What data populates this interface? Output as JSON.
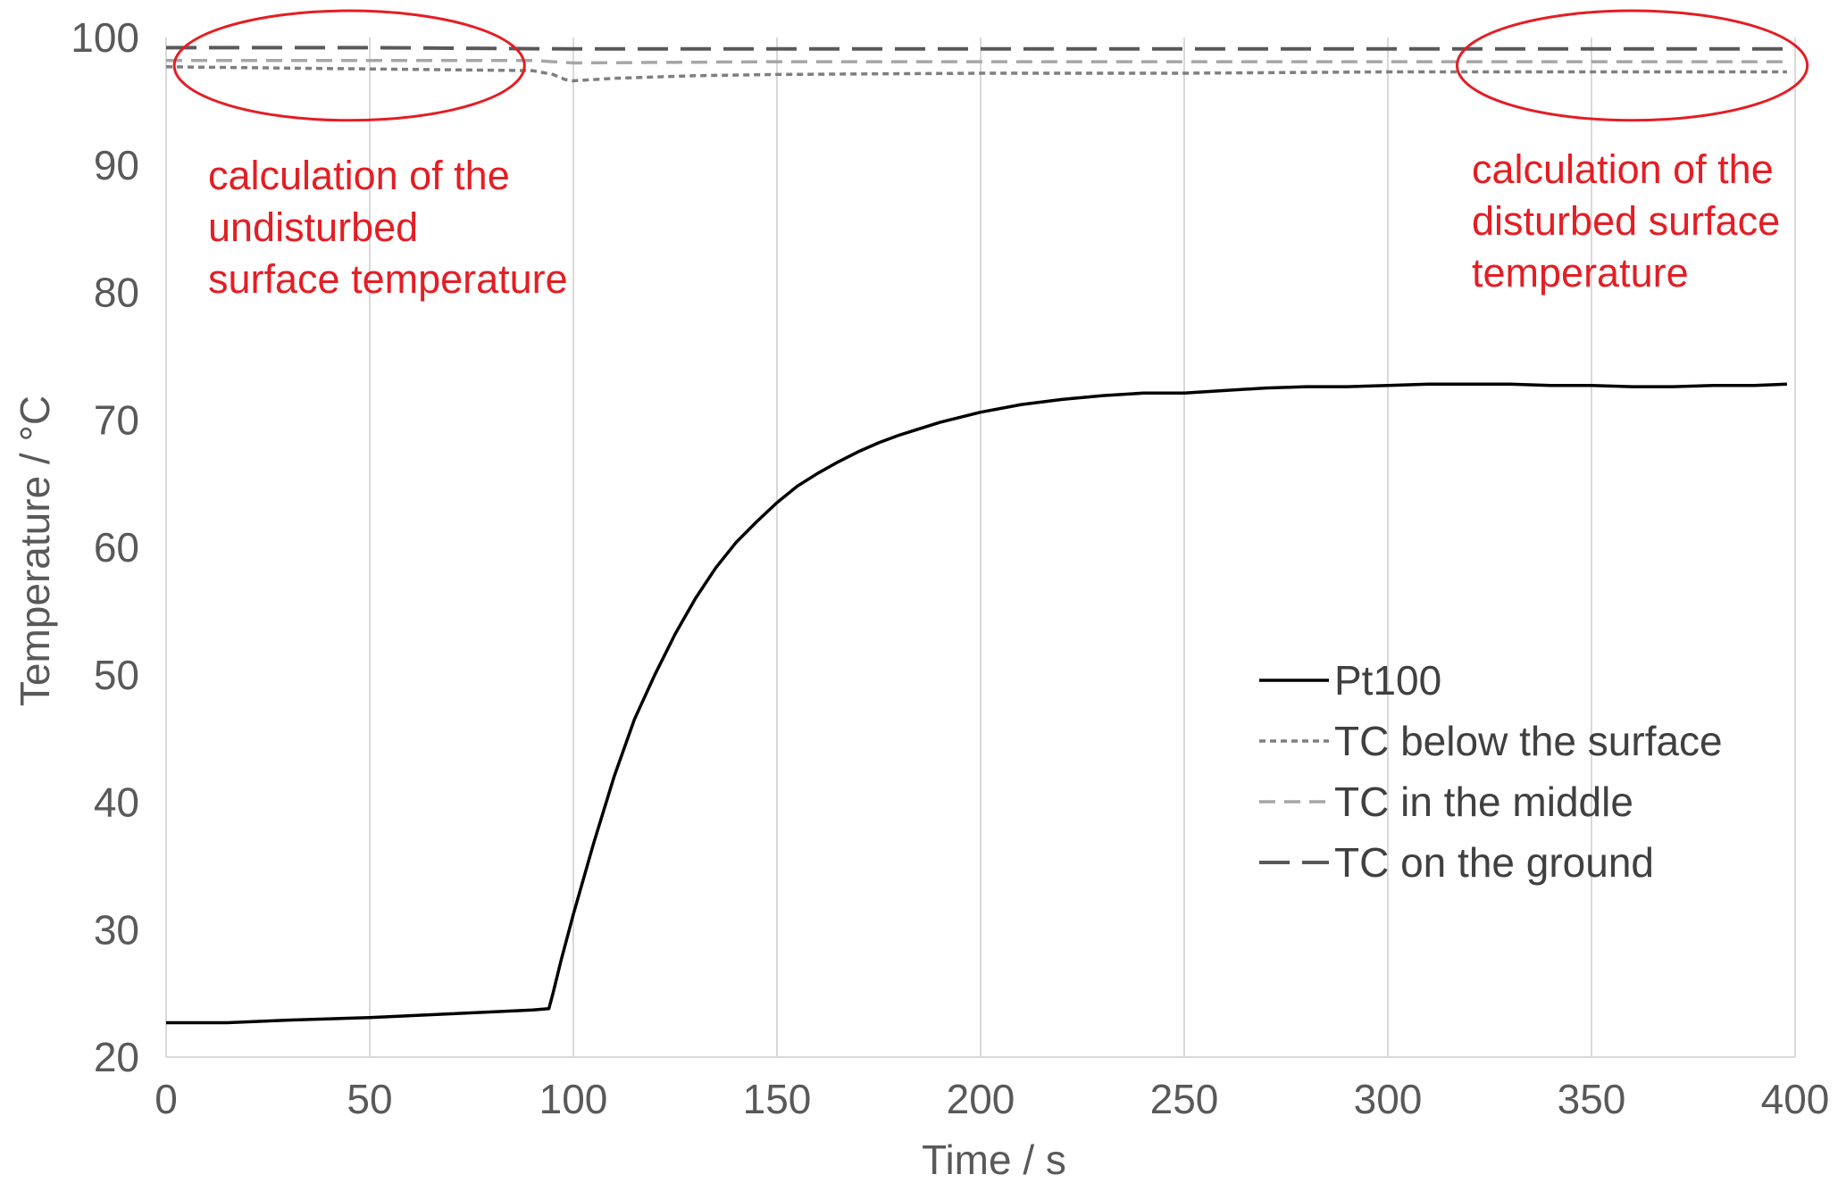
{
  "chart_data": {
    "type": "line",
    "title": "",
    "xlabel": "Time / s",
    "ylabel": "Temperature / °C",
    "xlim": [
      0,
      400
    ],
    "ylim": [
      20,
      100
    ],
    "xticks": [
      "0",
      "50",
      "100",
      "150",
      "200",
      "250",
      "300",
      "350",
      "400"
    ],
    "yticks": [
      "20",
      "30",
      "40",
      "50",
      "60",
      "70",
      "80",
      "90",
      "100"
    ],
    "grid": "vertical",
    "legend_position": "bottom-right",
    "series": [
      {
        "name": "Pt100",
        "color": "#000000",
        "style": "solid",
        "x": [
          0,
          15,
          30,
          50,
          70,
          90,
          94,
          95,
          97,
          100,
          105,
          110,
          115,
          120,
          125,
          130,
          135,
          140,
          145,
          150,
          155,
          160,
          165,
          170,
          175,
          180,
          190,
          200,
          210,
          220,
          230,
          240,
          250,
          260,
          270,
          280,
          290,
          300,
          310,
          320,
          330,
          340,
          350,
          360,
          370,
          380,
          390,
          398
        ],
        "y": [
          22.7,
          22.7,
          22.9,
          23.1,
          23.4,
          23.7,
          23.8,
          25.0,
          27.6,
          31.2,
          36.8,
          42.0,
          46.5,
          50.0,
          53.2,
          56.0,
          58.4,
          60.4,
          62.0,
          63.5,
          64.8,
          65.8,
          66.7,
          67.5,
          68.2,
          68.8,
          69.8,
          70.6,
          71.2,
          71.6,
          71.9,
          72.1,
          72.1,
          72.3,
          72.5,
          72.6,
          72.6,
          72.7,
          72.8,
          72.8,
          72.8,
          72.7,
          72.7,
          72.6,
          72.6,
          72.7,
          72.7,
          72.8
        ]
      },
      {
        "name": "TC below the surface",
        "color": "#7f7f7f",
        "style": "dotted",
        "x": [
          0,
          30,
          60,
          90,
          95,
          98,
          100,
          110,
          130,
          150,
          200,
          250,
          300,
          350,
          398
        ],
        "y": [
          97.7,
          97.6,
          97.5,
          97.4,
          97.1,
          96.7,
          96.6,
          96.8,
          97.0,
          97.1,
          97.2,
          97.2,
          97.3,
          97.3,
          97.3
        ]
      },
      {
        "name": "TC in the middle",
        "color": "#a6a6a6",
        "style": "dashed",
        "x": [
          0,
          50,
          90,
          95,
          100,
          150,
          200,
          250,
          300,
          350,
          398
        ],
        "y": [
          98.2,
          98.2,
          98.2,
          98.1,
          98.0,
          98.1,
          98.1,
          98.1,
          98.1,
          98.1,
          98.1
        ]
      },
      {
        "name": "TC on the ground",
        "color": "#595959",
        "style": "longdash",
        "x": [
          0,
          50,
          100,
          150,
          200,
          250,
          300,
          350,
          398
        ],
        "y": [
          99.2,
          99.2,
          99.1,
          99.1,
          99.1,
          99.1,
          99.1,
          99.1,
          99.1
        ]
      }
    ],
    "annotations": [
      {
        "lines": [
          "calculation of the",
          "undisturbed",
          "surface temperature"
        ],
        "color": "#e31e24",
        "ellipse_center": [
          45,
          97.8
        ],
        "ellipse_radius": [
          43,
          4.3
        ]
      },
      {
        "lines": [
          "calculation of the",
          "disturbed surface",
          "temperature"
        ],
        "color": "#e31e24",
        "ellipse_center": [
          360,
          97.8
        ],
        "ellipse_radius": [
          43,
          4.3
        ]
      }
    ]
  }
}
